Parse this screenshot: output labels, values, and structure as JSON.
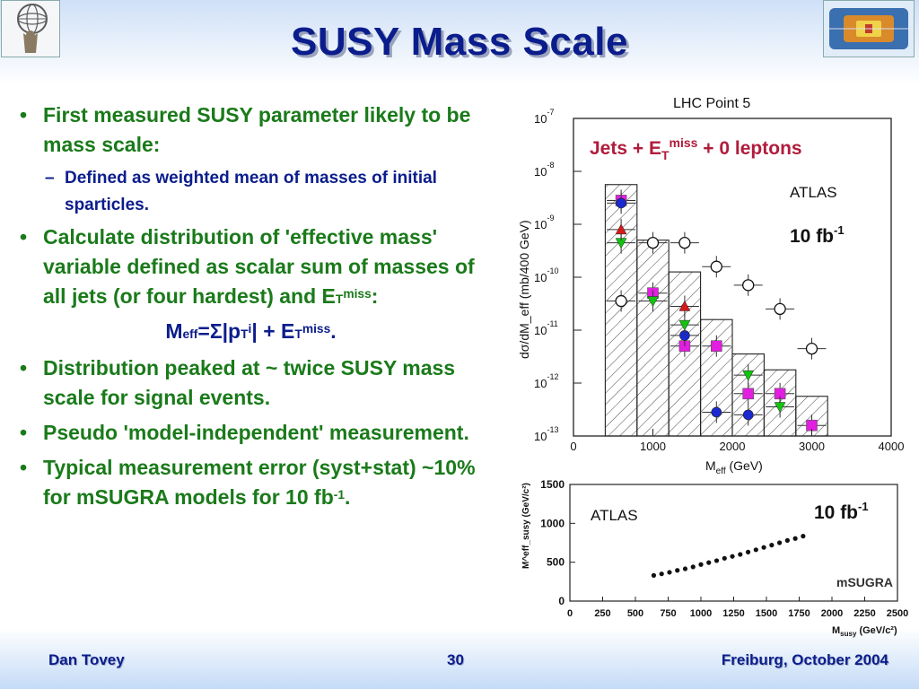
{
  "slide": {
    "title": "SUSY Mass Scale",
    "bullets": {
      "b1_text": "First measured SUSY parameter likely to be mass scale:",
      "b1_sub": "Defined as weighted mean of masses of initial sparticles.",
      "b2_text_a": "Calculate distribution of 'effective mass' variable defined as scalar sum of masses of all jets (or four hardest) and E",
      "b2_sub": "T",
      "b2_sup": "miss",
      "b2_end": ":",
      "formula": {
        "m": "M",
        "m_sub": "eff",
        "eq": "=",
        "sigma": "Σ",
        "pt_open": "|p",
        "pt_sub": "T",
        "pt_sup": "i",
        "pt_close": "| + E",
        "et_sub": "T",
        "et_sup": "miss",
        "end": "."
      },
      "b3": "Distribution peaked at ~ twice SUSY mass scale for signal events.",
      "b4": "Pseudo 'model-independent' measurement.",
      "b5_text": "Typical measurement error (syst+stat) ~10% for mSUGRA models for 10 fb",
      "b5_sup": "-1",
      "b5_end": ".",
      "dot": "•",
      "dash": "–"
    },
    "footer": {
      "left": "Dan Tovey",
      "center": "30",
      "right": "Freiburg, October 2004"
    }
  },
  "chart_data": [
    {
      "type": "scatter",
      "title": "LHC Point 5",
      "inner_label": {
        "pre": "Jets + E",
        "sub": "T",
        "sup": "miss",
        "post": " + 0 leptons"
      },
      "atlas": "ATLAS",
      "lumi": {
        "text": "10 fb",
        "sup": "-1"
      },
      "xlabel": {
        "main": "M",
        "sub": "eff",
        "rest": " (GeV)"
      },
      "ylabel": "dσ/dM_eff (mb/400 GeV)",
      "xlim": [
        0,
        4000
      ],
      "ylim_exp": [
        -13,
        -7
      ],
      "log_y": true,
      "xticks": [
        "0",
        "1000",
        "2000",
        "3000",
        "4000"
      ],
      "yticks": [
        {
          "base": "10",
          "exp": "-7"
        },
        {
          "base": "10",
          "exp": "-8"
        },
        {
          "base": "10",
          "exp": "-9"
        },
        {
          "base": "10",
          "exp": "-10"
        },
        {
          "base": "10",
          "exp": "-11"
        },
        {
          "base": "10",
          "exp": "-12"
        },
        {
          "base": "10",
          "exp": "-13"
        }
      ],
      "hist": {
        "bin_edges": [
          400,
          800,
          1200,
          1600,
          2000,
          2400,
          2800,
          3200
        ],
        "log_values": [
          -8.25,
          -9.3,
          -9.9,
          -10.8,
          -11.45,
          -11.75,
          -12.25
        ]
      },
      "series": [
        {
          "marker": "open-circle",
          "points": [
            [
              600,
              -10.45
            ],
            [
              1000,
              -9.35
            ],
            [
              1400,
              -9.35
            ],
            [
              1800,
              -9.8
            ],
            [
              2200,
              -10.15
            ],
            [
              2600,
              -10.6
            ],
            [
              3000,
              -11.35
            ]
          ]
        },
        {
          "marker": "filled-square",
          "color": "#e21ee0",
          "points": [
            [
              600,
              -8.55
            ],
            [
              1000,
              -10.3
            ],
            [
              1400,
              -11.3
            ],
            [
              1800,
              -11.3
            ],
            [
              2200,
              -12.2
            ],
            [
              2600,
              -12.2
            ],
            [
              3000,
              -12.8
            ]
          ]
        },
        {
          "marker": "filled-circle",
          "color": "#1a2ad0",
          "points": [
            [
              600,
              -8.6
            ],
            [
              1400,
              -11.1
            ],
            [
              1800,
              -12.55
            ],
            [
              2200,
              -12.6
            ]
          ]
        },
        {
          "marker": "triangle-down",
          "color": "#12c40e",
          "points": [
            [
              600,
              -9.35
            ],
            [
              1000,
              -10.45
            ],
            [
              1400,
              -10.9
            ],
            [
              2200,
              -11.85
            ],
            [
              2600,
              -12.45
            ]
          ]
        },
        {
          "marker": "triangle-up",
          "color": "#d61919",
          "points": [
            [
              600,
              -9.1
            ],
            [
              1400,
              -10.55
            ]
          ]
        }
      ]
    },
    {
      "type": "scatter",
      "atlas": "ATLAS",
      "lumi": {
        "text": "10 fb",
        "sup": "-1"
      },
      "model": "mSUGRA",
      "xlabel": {
        "main": "M",
        "sub": "susy",
        "rest": " (GeV/c²)"
      },
      "ylabel": "M^eff_susy (GeV/c²)",
      "xlim": [
        0,
        2500
      ],
      "ylim": [
        0,
        1500
      ],
      "xticks": [
        "0",
        "250",
        "500",
        "750",
        "1000",
        "1250",
        "1500",
        "1750",
        "2000",
        "2250",
        "2500"
      ],
      "yticks": [
        "0",
        "500",
        "1000",
        "1500"
      ],
      "points_x": [
        640,
        700,
        760,
        820,
        880,
        940,
        1000,
        1060,
        1120,
        1180,
        1240,
        1300,
        1360,
        1420,
        1480,
        1540,
        1600,
        1660,
        1720,
        1780
      ],
      "points_y": [
        330,
        350,
        370,
        395,
        415,
        440,
        470,
        495,
        520,
        550,
        575,
        600,
        630,
        660,
        690,
        720,
        750,
        780,
        805,
        835
      ]
    }
  ]
}
